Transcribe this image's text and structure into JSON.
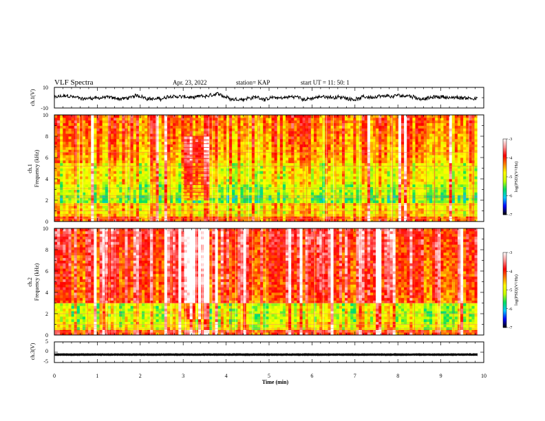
{
  "header": {
    "title": "VLF Spectra",
    "date": "Apr. 23, 2022",
    "station": "station= KAP",
    "start": "start  UT  =   11: 50: 1"
  },
  "chart_data": [
    {
      "type": "line",
      "name": "ch1-waveform",
      "ylabel": "ch.1(V)",
      "ylim": [
        -10,
        10
      ],
      "yticks": [
        "10",
        "-10"
      ],
      "xlim": [
        0,
        10
      ],
      "x_end": 9.85,
      "color": "#000000"
    },
    {
      "type": "heatmap",
      "name": "ch1-spectrogram",
      "ylabel_line1": "ch.1",
      "ylabel_line2": "Frequency (kHz)",
      "ylim": [
        0,
        10
      ],
      "yticks": [
        "0",
        "2",
        "4",
        "6",
        "8",
        "10"
      ],
      "xlim": [
        0,
        10
      ],
      "x_end": 9.85,
      "burst_interval": [
        3.0,
        3.6
      ]
    },
    {
      "type": "heatmap",
      "name": "ch2-spectrogram",
      "ylabel_line1": "ch.2",
      "ylabel_line2": "Frequency (kHz)",
      "ylim": [
        0,
        10
      ],
      "yticks": [
        "0",
        "2",
        "4",
        "6",
        "8",
        "10"
      ],
      "xlim": [
        0,
        10
      ],
      "x_end": 9.85,
      "burst_interval": [
        2.95,
        3.6
      ]
    },
    {
      "type": "line",
      "name": "ch3-waveform",
      "ylabel": "ch.3(V)",
      "ylim": [
        -5,
        5
      ],
      "yticks": [
        "5",
        "0",
        "-5"
      ],
      "xlim": [
        0,
        10
      ],
      "xticks": [
        "0",
        "1",
        "2",
        "3",
        "4",
        "5",
        "6",
        "7",
        "8",
        "9",
        "10"
      ],
      "xlabel": "Time  (min)",
      "x_end": 9.85,
      "color": "#000000"
    }
  ],
  "colorbar": {
    "ticks": [
      "-3",
      "-4",
      "-5",
      "-6",
      "-7"
    ],
    "label": "log(PSD)(V²/Hz)",
    "range": [
      -7,
      -3
    ],
    "colors": [
      "#000000",
      "#0000ff",
      "#00c8ff",
      "#00e060",
      "#c8ff00",
      "#ffff00",
      "#ff8000",
      "#ff0000",
      "#ff9090",
      "#ffffff"
    ]
  }
}
